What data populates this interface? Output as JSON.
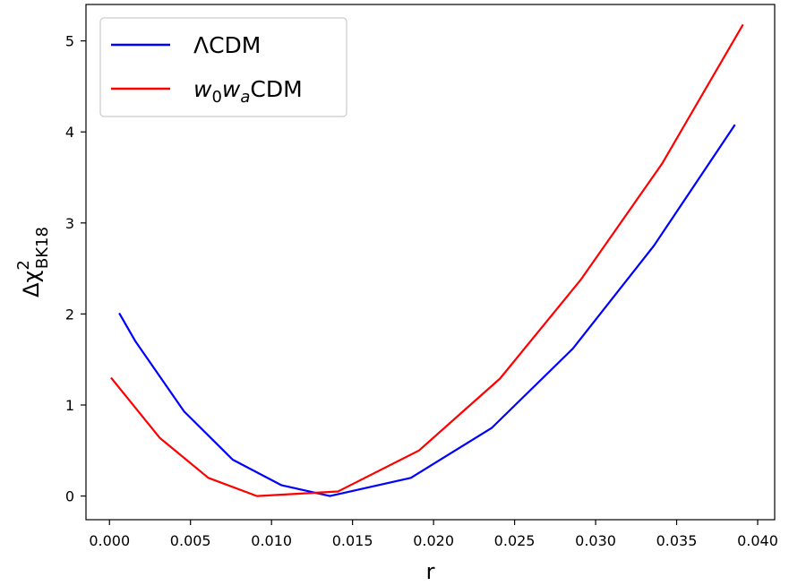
{
  "chart_data": {
    "type": "line",
    "title": "",
    "xlabel": "r",
    "ylabel_parts": {
      "base": "Δχ",
      "sup": "2",
      "sub": "BK18"
    },
    "xlim": [
      -0.00145,
      0.04105
    ],
    "ylim": [
      -0.26,
      5.4
    ],
    "xticks": [
      {
        "value": 0.0,
        "label": "0.000"
      },
      {
        "value": 0.005,
        "label": "0.005"
      },
      {
        "value": 0.01,
        "label": "0.010"
      },
      {
        "value": 0.015,
        "label": "0.015"
      },
      {
        "value": 0.02,
        "label": "0.020"
      },
      {
        "value": 0.025,
        "label": "0.025"
      },
      {
        "value": 0.03,
        "label": "0.030"
      },
      {
        "value": 0.035,
        "label": "0.035"
      },
      {
        "value": 0.04,
        "label": "0.040"
      }
    ],
    "yticks": [
      {
        "value": 0,
        "label": "0"
      },
      {
        "value": 1,
        "label": "1"
      },
      {
        "value": 2,
        "label": "2"
      },
      {
        "value": 3,
        "label": "3"
      },
      {
        "value": 4,
        "label": "4"
      },
      {
        "value": 5,
        "label": "5"
      }
    ],
    "grid": false,
    "legend_position": "top-left",
    "series": [
      {
        "name": "ΛCDM",
        "name_parts": [
          {
            "text": "ΛCDM"
          }
        ],
        "color": "#0000ff",
        "x": [
          0.0006,
          0.0016,
          0.0046,
          0.0076,
          0.0106,
          0.0136,
          0.0186,
          0.0236,
          0.0286,
          0.0336,
          0.0386
        ],
        "y": [
          2.01,
          1.7,
          0.93,
          0.4,
          0.12,
          0.0,
          0.2,
          0.75,
          1.62,
          2.75,
          4.08
        ]
      },
      {
        "name": "w0waCDM",
        "name_parts": [
          {
            "text": "w",
            "italic": true
          },
          {
            "text": "0",
            "sub": true
          },
          {
            "text": "w",
            "italic": true
          },
          {
            "text": "a",
            "sub": true,
            "italic": true
          },
          {
            "text": "CDM"
          }
        ],
        "color": "#ff0000",
        "x": [
          0.0001,
          0.0031,
          0.0061,
          0.0091,
          0.0141,
          0.0191,
          0.0241,
          0.0291,
          0.0341,
          0.0391
        ],
        "y": [
          1.3,
          0.64,
          0.2,
          0.0,
          0.05,
          0.5,
          1.29,
          2.38,
          3.65,
          5.18
        ]
      }
    ]
  }
}
